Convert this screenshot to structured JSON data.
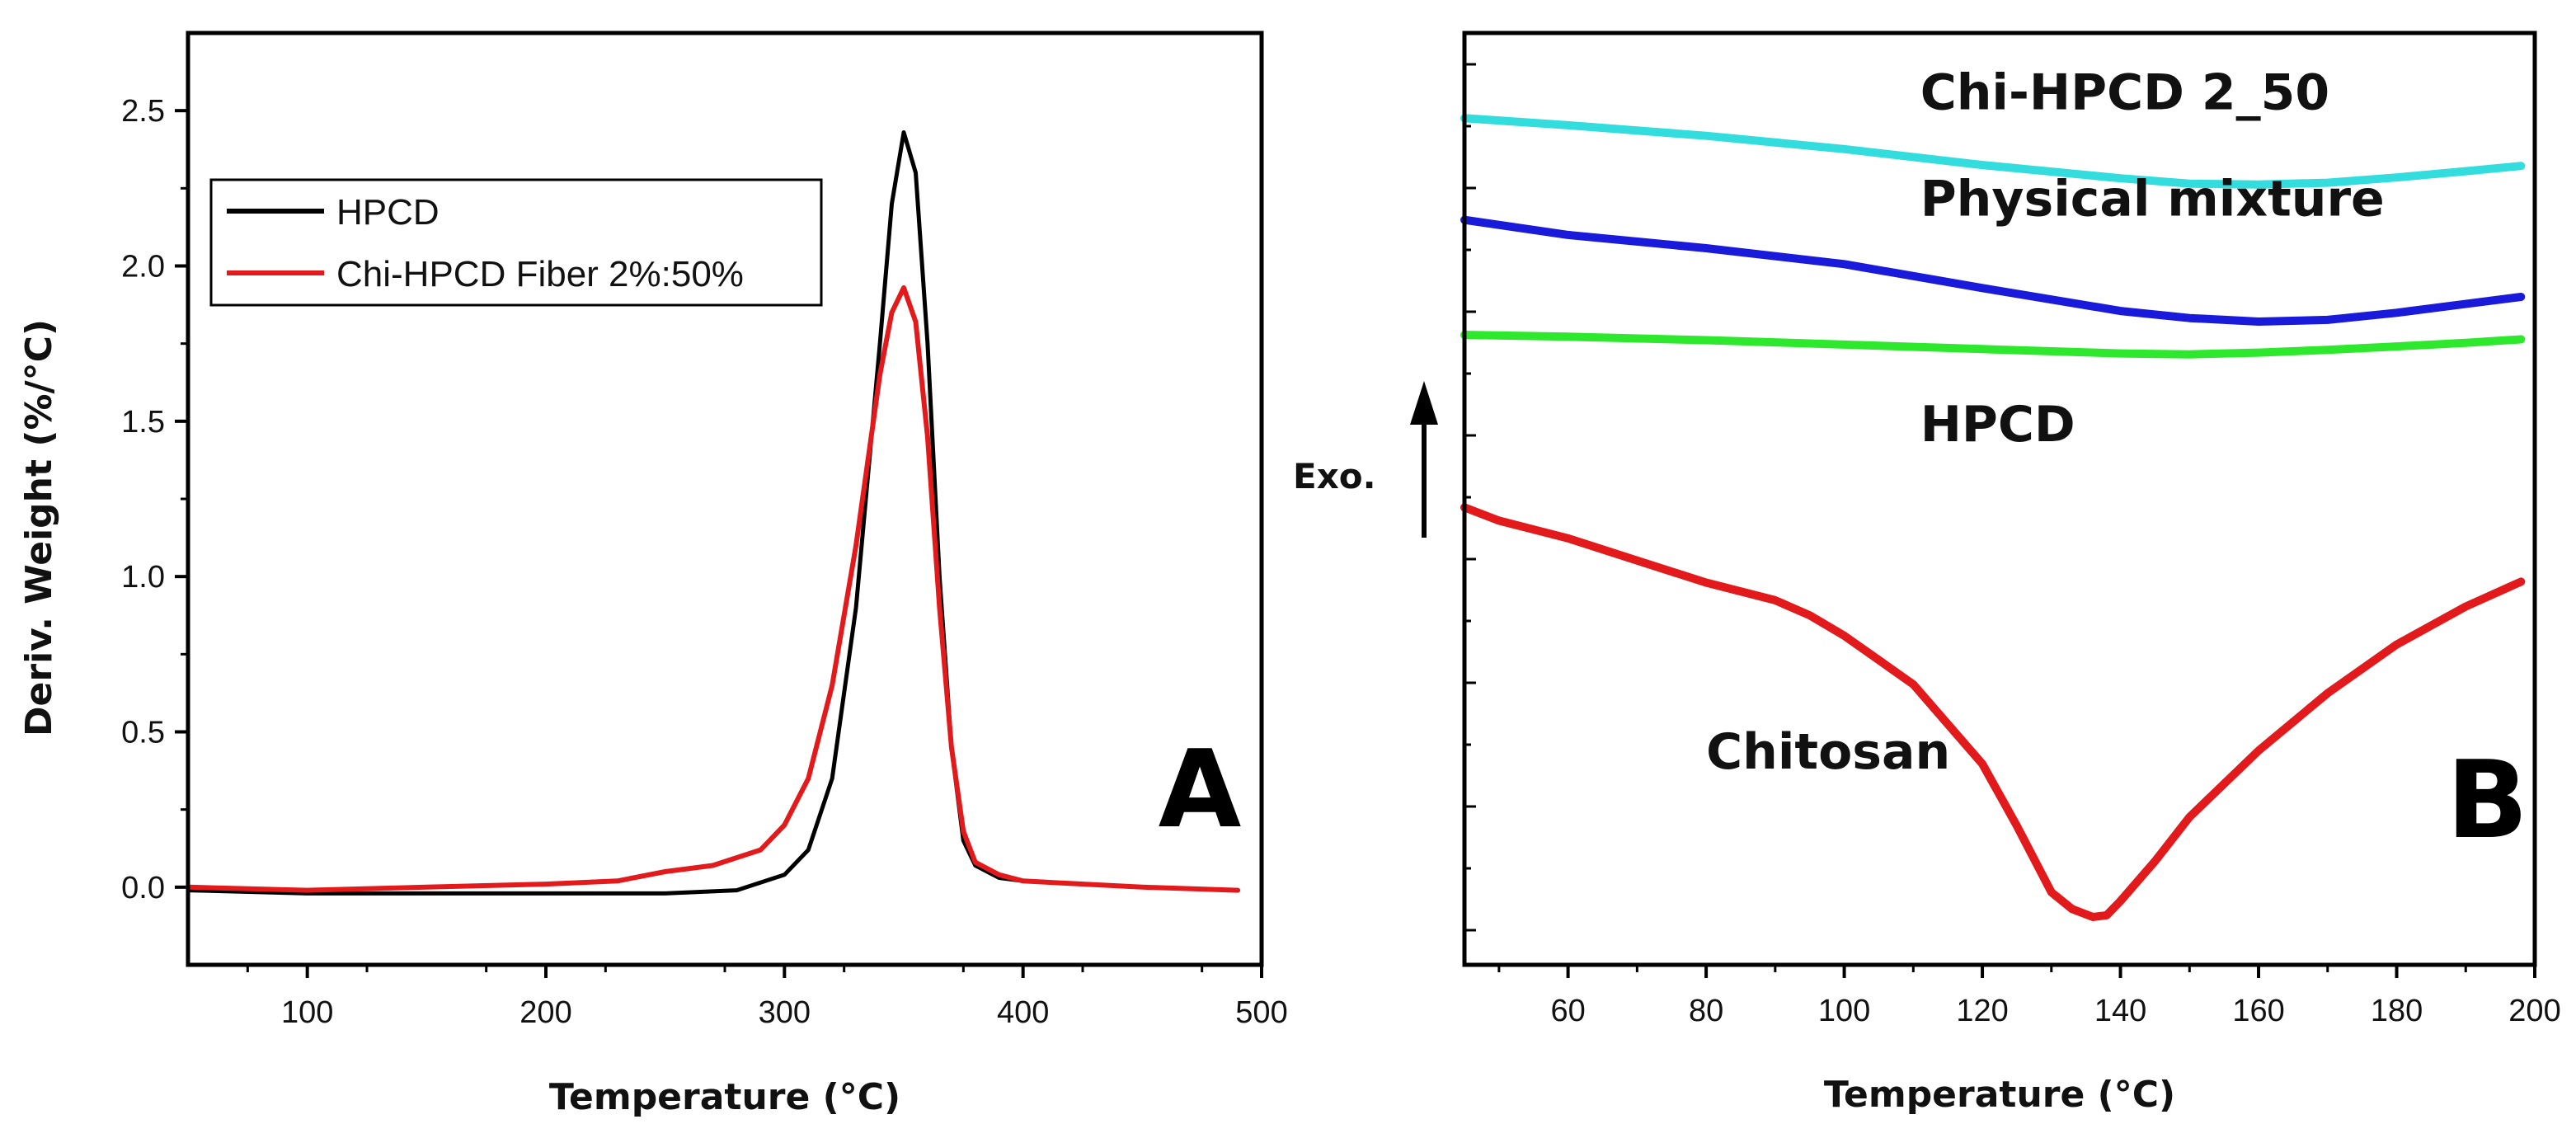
{
  "chart_data": [
    {
      "type": "line",
      "panel_label": "A",
      "xlabel": "Temperature (°C)",
      "ylabel": "Deriv. Weight (%/°C)",
      "xlim": [
        50,
        500
      ],
      "ylim": [
        -0.25,
        2.75
      ],
      "xticks": [
        100,
        200,
        300,
        400,
        500
      ],
      "yticks": [
        0.0,
        0.5,
        1.0,
        1.5,
        2.0,
        2.5
      ],
      "xtick_labels": [
        "100",
        "200",
        "300",
        "400",
        "500"
      ],
      "ytick_labels": [
        "0.0",
        "0.5",
        "1.0",
        "1.5",
        "2.0",
        "2.5"
      ],
      "legend_position": "top-left",
      "series": [
        {
          "name": "HPCD",
          "color": "#000000",
          "x": [
            50,
            100,
            150,
            200,
            250,
            280,
            300,
            310,
            320,
            330,
            340,
            345,
            350,
            355,
            360,
            365,
            370,
            375,
            380,
            390,
            400,
            450,
            490
          ],
          "y": [
            -0.01,
            -0.02,
            -0.02,
            -0.02,
            -0.02,
            -0.01,
            0.04,
            0.12,
            0.35,
            0.9,
            1.75,
            2.2,
            2.43,
            2.3,
            1.75,
            1.0,
            0.45,
            0.15,
            0.07,
            0.03,
            0.02,
            0.0,
            -0.01
          ]
        },
        {
          "name": "Chi-HPCD Fiber 2%:50%",
          "color": "#e31a1c",
          "x": [
            50,
            100,
            150,
            200,
            230,
            250,
            270,
            290,
            300,
            310,
            320,
            330,
            340,
            345,
            350,
            355,
            360,
            365,
            370,
            375,
            380,
            390,
            400,
            450,
            490
          ],
          "y": [
            0.0,
            -0.01,
            0.0,
            0.01,
            0.02,
            0.05,
            0.07,
            0.12,
            0.2,
            0.35,
            0.65,
            1.1,
            1.65,
            1.85,
            1.93,
            1.82,
            1.45,
            0.9,
            0.45,
            0.18,
            0.08,
            0.04,
            0.02,
            0.0,
            -0.01
          ]
        }
      ]
    },
    {
      "type": "line",
      "panel_label": "B",
      "xlabel": "Temperature (°C)",
      "ylabel": "",
      "y_indicator": "Exo.",
      "xlim": [
        45,
        200
      ],
      "ylim": [
        0,
        100
      ],
      "xticks": [
        60,
        80,
        100,
        120,
        140,
        160,
        180,
        200
      ],
      "xtick_labels": [
        "60",
        "80",
        "100",
        "120",
        "140",
        "160",
        "180",
        "200"
      ],
      "series": [
        {
          "name": "Chi-HPCD 2_50",
          "color": "#33dddd",
          "x": [
            45,
            60,
            80,
            100,
            120,
            140,
            150,
            160,
            170,
            180,
            190,
            198
          ],
          "y": [
            90.0,
            89.2,
            88.0,
            86.5,
            84.7,
            83.2,
            82.6,
            82.5,
            82.7,
            83.3,
            84.0,
            84.6
          ],
          "label_x": 111,
          "label_y": 91.0
        },
        {
          "name": "Physical mixture",
          "color": "#1a1adb",
          "x": [
            45,
            60,
            80,
            100,
            120,
            140,
            150,
            160,
            170,
            180,
            190,
            198
          ],
          "y": [
            78.5,
            76.8,
            75.3,
            73.5,
            70.8,
            68.2,
            67.4,
            67.0,
            67.2,
            68.0,
            69.0,
            69.8
          ],
          "label_x": 111,
          "label_y": 79.0
        },
        {
          "name": "HPCD",
          "color": "#2ee82e",
          "x": [
            45,
            60,
            80,
            100,
            120,
            140,
            150,
            160,
            170,
            180,
            190,
            198
          ],
          "y": [
            65.5,
            65.3,
            64.9,
            64.4,
            63.9,
            63.4,
            63.3,
            63.5,
            63.8,
            64.2,
            64.6,
            65.0
          ],
          "label_x": 111,
          "label_y": 53.5
        },
        {
          "name": "Chitosan",
          "color": "#e31a1c",
          "x": [
            45,
            50,
            60,
            70,
            80,
            90,
            95,
            100,
            110,
            120,
            125,
            130,
            133,
            136,
            138,
            140,
            145,
            150,
            160,
            170,
            180,
            190,
            198
          ],
          "y": [
            46.0,
            44.5,
            42.5,
            40.0,
            37.5,
            35.5,
            33.8,
            31.5,
            26.0,
            17.0,
            10.0,
            2.5,
            0.6,
            -0.3,
            -0.1,
            1.5,
            6.0,
            11.0,
            18.5,
            25.0,
            30.5,
            34.8,
            37.6
          ],
          "label_x": 80,
          "label_y": 16.5
        }
      ]
    }
  ]
}
